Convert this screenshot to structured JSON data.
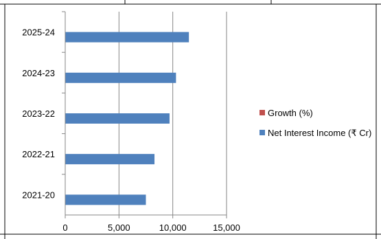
{
  "chart_data": {
    "type": "bar",
    "orientation": "horizontal",
    "categories": [
      "2021-20",
      "2022-21",
      "2023-22",
      "2024-23",
      "2025-24"
    ],
    "series": [
      {
        "name": "Growth (%)",
        "color": "#C0504D",
        "values": [
          0,
          0,
          0,
          0,
          0
        ]
      },
      {
        "name": "Net Interest Income (₹ Cr)",
        "color": "#4F81BD",
        "values": [
          7500,
          8300,
          9700,
          10300,
          11500
        ]
      }
    ],
    "x_ticks": [
      "0",
      "5,000",
      "10,000",
      "15,000"
    ],
    "xlim": [
      0,
      15000
    ],
    "grid": "vertical",
    "legend_position": "right",
    "title": "",
    "xlabel": "",
    "ylabel": ""
  }
}
